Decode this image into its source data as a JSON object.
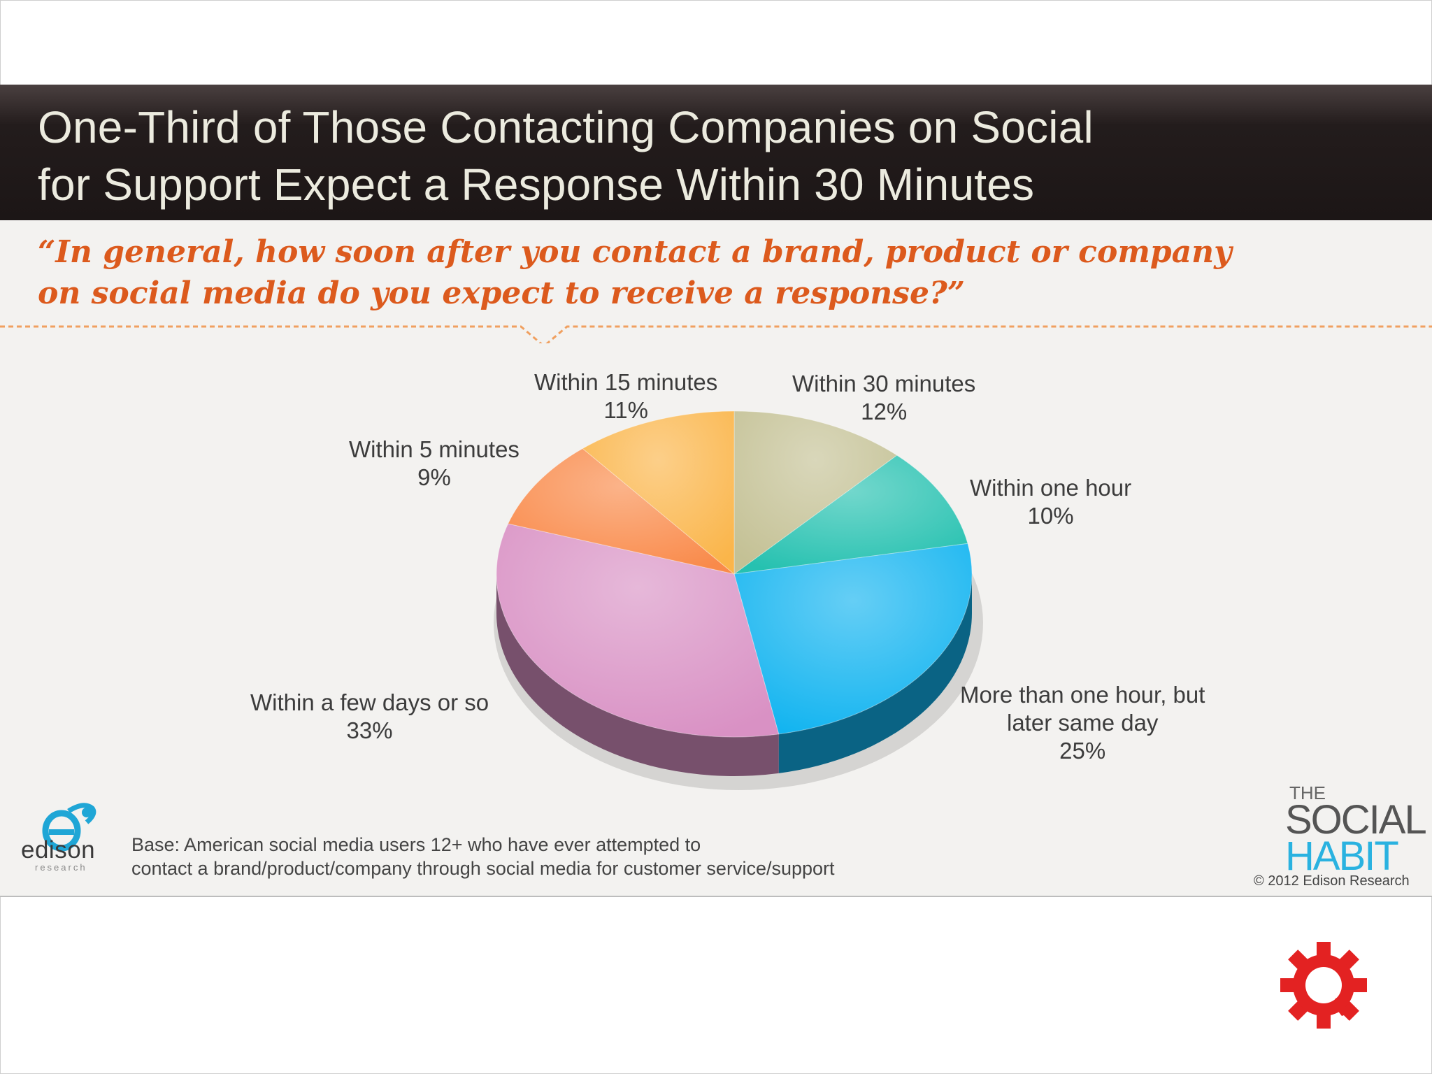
{
  "slide": {
    "title_lines": [
      "One-Third of Those Contacting Companies on Social",
      "for Support Expect a Response Within 30 Minutes"
    ],
    "question_lines": [
      "“In general, how soon after you contact a brand, product or company",
      "on social media do you expect to receive a response?”"
    ],
    "base_note_lines": [
      "Base: American social media users 12+ who have ever attempted to",
      "contact a brand/product/company through social media for customer service/support"
    ],
    "edison_logo": {
      "name": "edison",
      "subtitle": "research"
    },
    "social_habit_logo": {
      "the": "THE",
      "social": "SOCIAL",
      "habit": "HABIT"
    },
    "copyright": "© 2012 Edison Research"
  },
  "chart_data": {
    "type": "pie",
    "title": "In general, how soon after you contact a brand, product or company on social media do you expect to receive a response?",
    "slices": [
      {
        "label": "Within 30 minutes",
        "value": 12,
        "display": "12%",
        "color": "#c4c195"
      },
      {
        "label": "Within one hour",
        "value": 10,
        "display": "10%",
        "color": "#26c1b0"
      },
      {
        "label": "More than one hour, but later same day",
        "label_lines": [
          "More than one hour, but",
          "later same day"
        ],
        "value": 25,
        "display": "25%",
        "color": "#12b4f0"
      },
      {
        "label": "Within a few days or so",
        "value": 33,
        "display": "33%",
        "color": "#d991c4"
      },
      {
        "label": "Within 5 minutes",
        "value": 9,
        "display": "9%",
        "color": "#f98a4a"
      },
      {
        "label": "Within 15 minutes",
        "value": 11,
        "display": "11%",
        "color": "#fab54a"
      }
    ]
  },
  "colors": {
    "question": "#dc5a1d",
    "title_text": "#ecebdf",
    "gear": "#e32222",
    "habit": "#2ab2e0"
  }
}
